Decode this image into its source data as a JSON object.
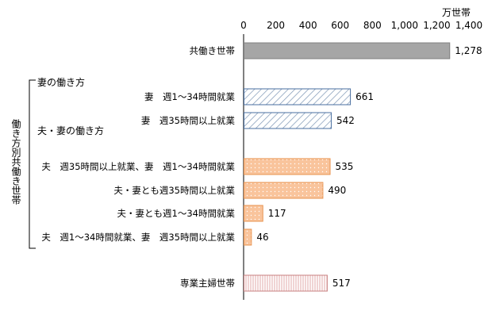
{
  "chart_data": {
    "type": "bar",
    "orientation": "horizontal",
    "unit_label": "万世帯",
    "xlim": [
      0,
      1400
    ],
    "x_ticks": [
      "0",
      "200",
      "400",
      "600",
      "800",
      "1,000",
      "1,200",
      "1,400"
    ],
    "bracket_label": "働き方別共働き世帯",
    "group_labels": [
      "妻の働き方",
      "夫・妻の働き方"
    ],
    "bars": [
      {
        "category": "共働き世帯",
        "value": 1278,
        "value_label": "1,278",
        "style": "solid",
        "color": "#a6a6a6"
      },
      {
        "category": "妻　週1～34時間就業",
        "value": 661,
        "value_label": "661",
        "style": "hatch",
        "color": "#8ea5c0"
      },
      {
        "category": "妻　週35時間以上就業",
        "value": 542,
        "value_label": "542",
        "style": "hatch",
        "color": "#8ea5c0"
      },
      {
        "category": "夫　週35時間以上就業、妻　週1～34時間就業",
        "value": 535,
        "value_label": "535",
        "style": "dots",
        "color": "#f7b98a"
      },
      {
        "category": "夫・妻とも週35時間以上就業",
        "value": 490,
        "value_label": "490",
        "style": "dots",
        "color": "#f7b98a"
      },
      {
        "category": "夫・妻とも週1～34時間就業",
        "value": 117,
        "value_label": "117",
        "style": "dots",
        "color": "#f7b98a"
      },
      {
        "category": "夫　週1～34時間就業、妻　週35時間以上就業",
        "value": 46,
        "value_label": "46",
        "style": "dots",
        "color": "#f7b98a"
      },
      {
        "category": "専業主婦世帯",
        "value": 517,
        "value_label": "517",
        "style": "vstripe",
        "color": "#e6b0b0"
      }
    ]
  }
}
